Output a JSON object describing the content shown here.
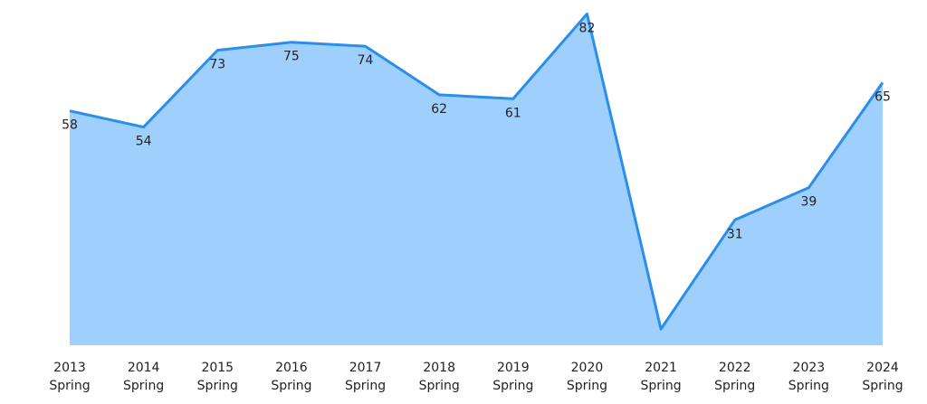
{
  "chart_data": {
    "type": "area",
    "categories": [
      [
        "2013",
        "Spring"
      ],
      [
        "2014",
        "Spring"
      ],
      [
        "2015",
        "Spring"
      ],
      [
        "2016",
        "Spring"
      ],
      [
        "2017",
        "Spring"
      ],
      [
        "2018",
        "Spring"
      ],
      [
        "2019",
        "Spring"
      ],
      [
        "2020",
        "Spring"
      ],
      [
        "2021",
        "Spring"
      ],
      [
        "2022",
        "Spring"
      ],
      [
        "2023",
        "Spring"
      ],
      [
        "2024",
        "Spring"
      ]
    ],
    "values": [
      58,
      54,
      73,
      75,
      74,
      62,
      61,
      82,
      4,
      31,
      39,
      65
    ],
    "value_labels": [
      "58",
      "54",
      "73",
      "75",
      "74",
      "62",
      "61",
      "82",
      null,
      "31",
      "39",
      "65"
    ],
    "color": "#2a8eec",
    "fill": "#9fd0fd",
    "ylim": [
      0,
      85
    ]
  }
}
